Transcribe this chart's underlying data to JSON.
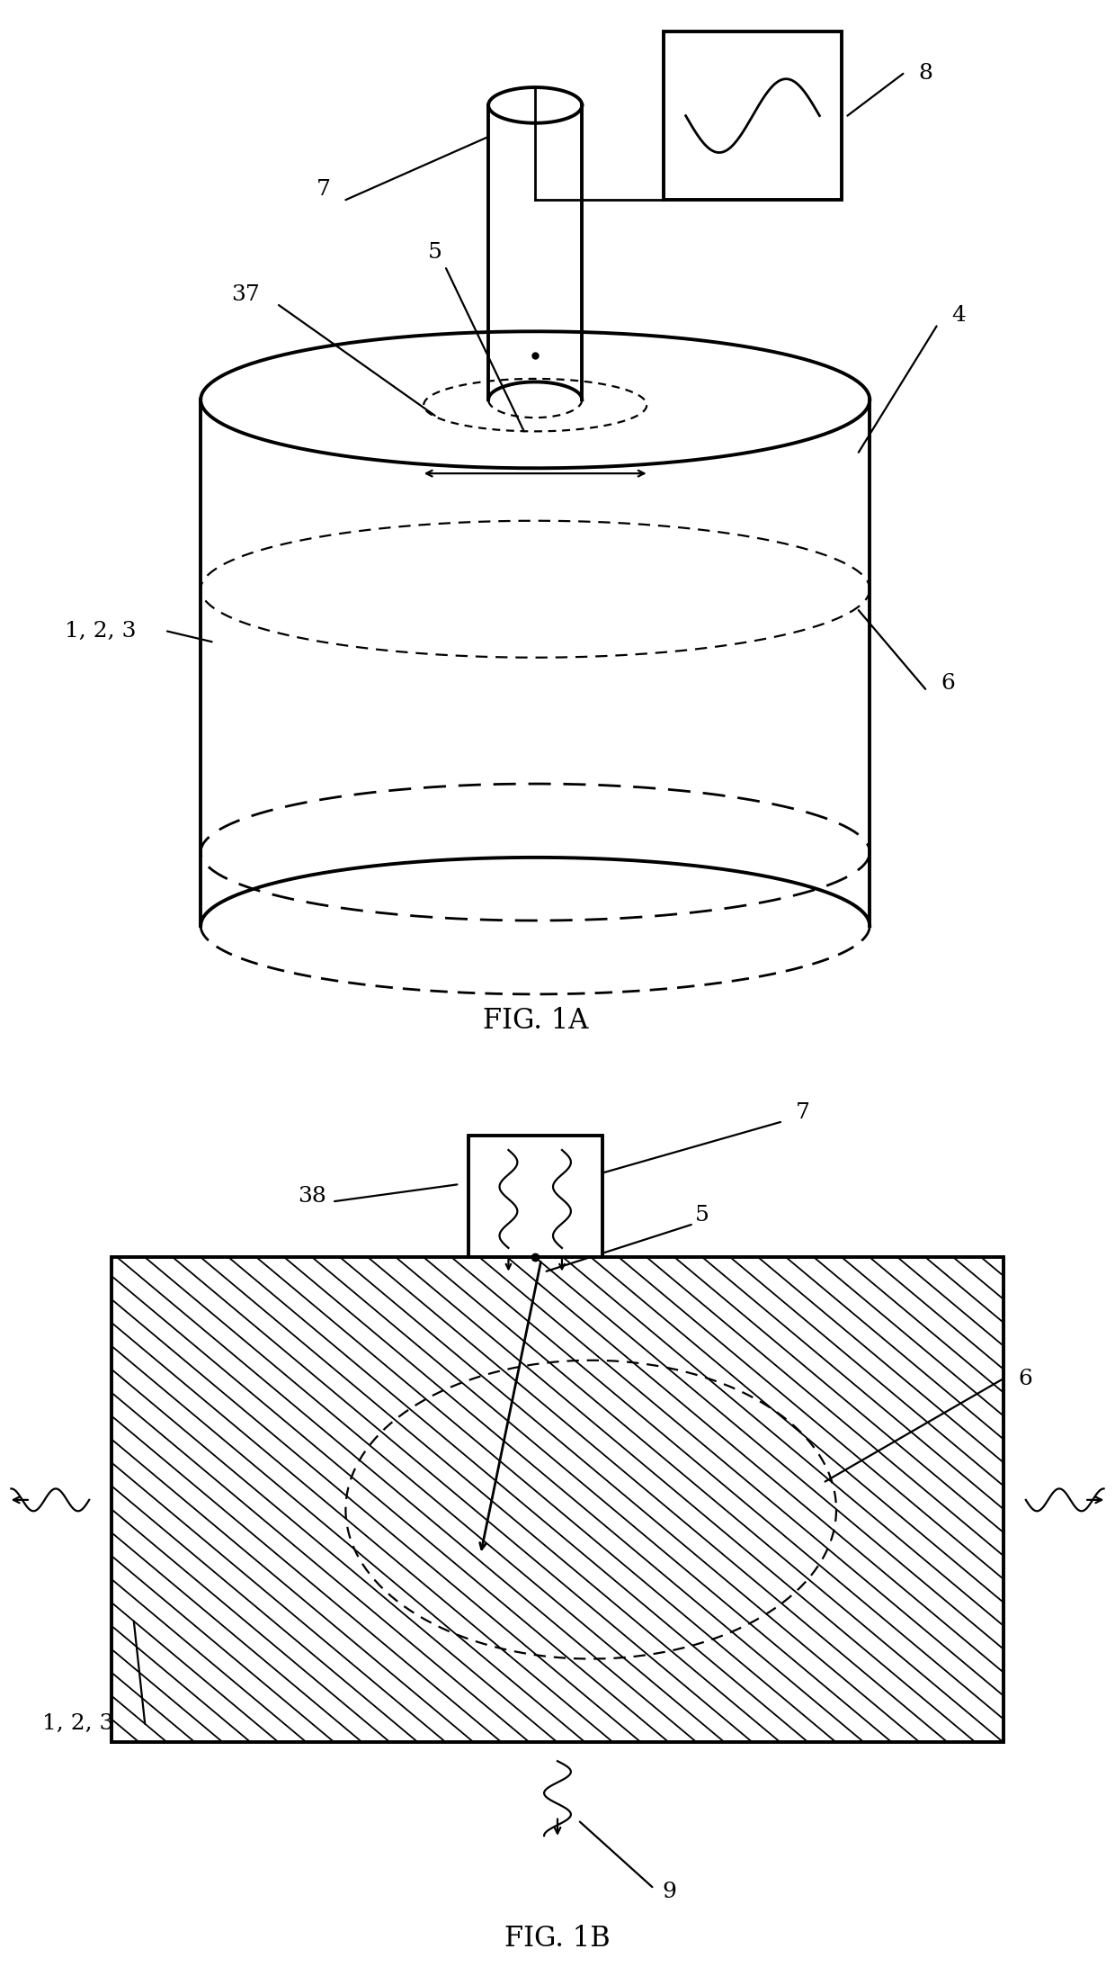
{
  "fig_size": [
    12.4,
    22.06
  ],
  "dpi": 100,
  "background": "#ffffff",
  "line_color": "#000000",
  "label_fontsize": 18,
  "caption_fontsize": 22
}
